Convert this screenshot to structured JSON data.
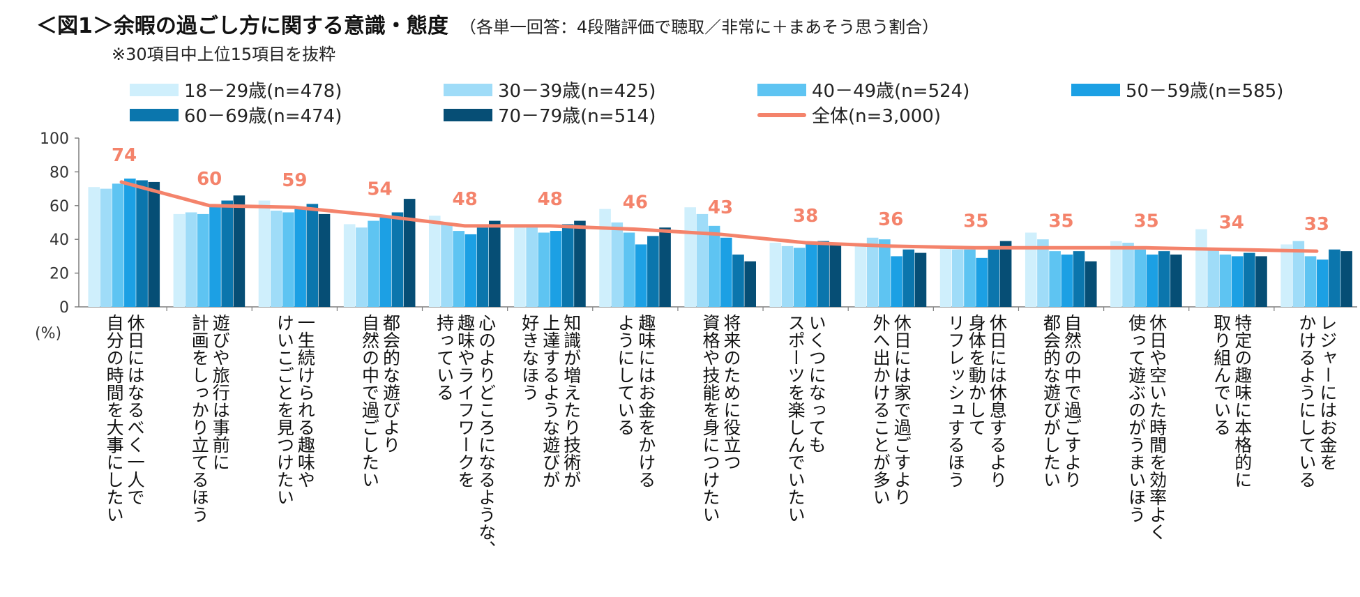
{
  "title": {
    "main": "＜図1＞余暇の過ごし方に関する意識・態度",
    "sub": "（各単一回答：4段階評価で聴取／非常に＋まあそう思う割合）"
  },
  "subtitle": "※30項目中上位15項目を抜粋",
  "colors": {
    "s1": "#cfeffc",
    "s2": "#9fdcf8",
    "s3": "#5ec4f2",
    "s4": "#1ca0e4",
    "s5": "#0b76ad",
    "s6": "#064e75",
    "total": "#f4836b",
    "axis": "#7f7f7f"
  },
  "chart_data": {
    "type": "bar",
    "title": "余暇の過ごし方に関する意識・態度",
    "ylabel": "(%)",
    "ylim": [
      0,
      100
    ],
    "yticks": [
      "0",
      "20",
      "40",
      "60",
      "80",
      "100"
    ],
    "unit_label": "(%)",
    "categories": [
      "休日にはなるべく一人で\n自分の時間を大事にしたい",
      "遊びや旅行は事前に\n計画をしっかり立てるほう",
      "一生続けられる趣味や\nけいこごとを見つけたい",
      "都会的な遊びより\n自然の中で過ごしたい",
      "心のよりどころになるような、\n趣味やライフワークを\n持っている",
      "知識が増えたり技術が\n上達するような遊びが\n好きなほう",
      "趣味にはお金をかける\nようにしている",
      "将来のために役立つ\n資格や技能を身につけたい",
      "いくつになっても\nスポーツを楽しんでいたい",
      "休日には家で過ごすより\n外へ出かけることが多い",
      "休日には休息するより\n身体を動かして\nリフレッシュするほう",
      "自然の中で過ごすより\n都会的な遊びがしたい",
      "休日や空いた時間を効率よく\n使って遊ぶのがうまいほう",
      "特定の趣味に本格的に\n取り組んでいる",
      "レジャーにはお金を\nかけるようにしている"
    ],
    "series": [
      {
        "name": "18－29歳(n=478)",
        "values": [
          71,
          55,
          63,
          49,
          54,
          47,
          58,
          59,
          38,
          37,
          36,
          44,
          39,
          46,
          37
        ]
      },
      {
        "name": "30－39歳(n=425)",
        "values": [
          70,
          56,
          57,
          47,
          49,
          47,
          50,
          55,
          36,
          41,
          34,
          40,
          38,
          34,
          39
        ]
      },
      {
        "name": "40－49歳(n=524)",
        "values": [
          73,
          55,
          56,
          51,
          45,
          44,
          44,
          48,
          35,
          40,
          34,
          33,
          34,
          31,
          30
        ]
      },
      {
        "name": "50－59歳(n=585)",
        "values": [
          76,
          60,
          58,
          53,
          43,
          45,
          37,
          41,
          37,
          30,
          29,
          31,
          31,
          30,
          28
        ]
      },
      {
        "name": "60－69歳(n=474)",
        "values": [
          75,
          63,
          61,
          56,
          47,
          49,
          42,
          31,
          39,
          34,
          34,
          33,
          33,
          32,
          34
        ]
      },
      {
        "name": "70－79歳(n=514)",
        "values": [
          74,
          66,
          55,
          64,
          51,
          51,
          47,
          27,
          38,
          32,
          39,
          27,
          31,
          30,
          33
        ]
      }
    ],
    "total": {
      "name": "全体(n=3,000)",
      "values": [
        74,
        60,
        59,
        54,
        48,
        48,
        46,
        43,
        38,
        36,
        35,
        35,
        35,
        34,
        33
      ],
      "labels": [
        "74",
        "60",
        "59",
        "54",
        "48",
        "48",
        "46",
        "43",
        "38",
        "36",
        "35",
        "35",
        "35",
        "34",
        "33"
      ]
    },
    "legend": "top"
  }
}
